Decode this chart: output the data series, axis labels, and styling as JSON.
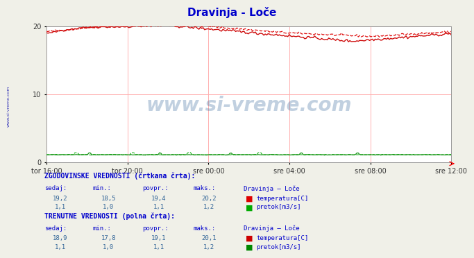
{
  "title": "Dravinja - Loče",
  "title_color": "#0000cc",
  "bg_color": "#f0f0e8",
  "plot_bg_color": "#ffffff",
  "grid_color": "#ffb0b0",
  "xlabels": [
    "tor 16:00",
    "tor 20:00",
    "sre 00:00",
    "sre 04:00",
    "sre 08:00",
    "sre 12:00"
  ],
  "ylim": [
    0,
    20
  ],
  "yticks": [
    0,
    10,
    20
  ],
  "n_points": 288,
  "temp_historical_min": 18.5,
  "temp_historical_max": 20.2,
  "temp_historical_avg": 19.4,
  "temp_historical_cur": 19.2,
  "temp_current_min": 17.8,
  "temp_current_max": 20.1,
  "temp_current_avg": 19.1,
  "temp_current_cur": 18.9,
  "flow_historical_min": 1.0,
  "flow_historical_max": 1.2,
  "flow_historical_avg": 1.1,
  "flow_historical_cur": 1.1,
  "flow_current_min": 1.0,
  "flow_current_max": 1.2,
  "flow_current_avg": 1.1,
  "flow_current_cur": 1.1,
  "temp_color_hist": "#dd0000",
  "temp_color_curr": "#cc0000",
  "flow_color_hist": "#00aa00",
  "flow_color_curr": "#008800",
  "watermark": "www.si-vreme.com",
  "watermark_color": "#336699",
  "watermark_alpha": 0.3,
  "sidebar_text": "www.si-vreme.com",
  "sidebar_color": "#0000aa",
  "table_header_color": "#0000cc",
  "table_label_color": "#0000cc",
  "table_value_color": "#336699",
  "hist_label": "ZGODOVINSKE VREDNOSTI (črtkana črta):",
  "curr_label": "TRENUTNE VREDNOSTI (polna črta):",
  "col_headers": [
    "sedaj:",
    "min.:",
    "povpr.:",
    "maks.:",
    "Dravinja – Loče"
  ],
  "legend_temp": "temperatura[C]",
  "legend_flow": "pretok[m3/s]"
}
